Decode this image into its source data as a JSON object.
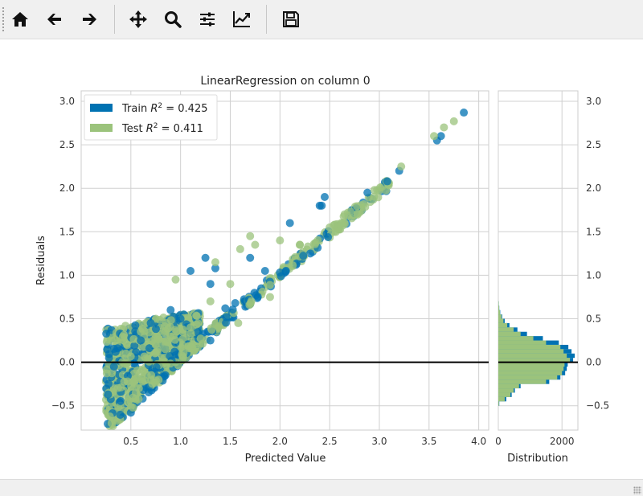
{
  "toolbar": {
    "buttons": [
      {
        "name": "home-button",
        "icon": "home-icon",
        "tooltip": "Reset original view"
      },
      {
        "name": "back-button",
        "icon": "arrow-left-icon",
        "tooltip": "Back to previous view"
      },
      {
        "name": "forward-button",
        "icon": "arrow-right-icon",
        "tooltip": "Forward to next view"
      },
      {
        "name": "pan-button",
        "icon": "move-icon",
        "tooltip": "Pan axes"
      },
      {
        "name": "zoom-button",
        "icon": "zoom-icon",
        "tooltip": "Zoom to rectangle"
      },
      {
        "name": "subplots-button",
        "icon": "sliders-icon",
        "tooltip": "Configure subplots"
      },
      {
        "name": "customize-button",
        "icon": "chart-line-icon",
        "tooltip": "Edit axis, curve and image parameters"
      },
      {
        "name": "save-button",
        "icon": "save-icon",
        "tooltip": "Save the figure"
      }
    ]
  },
  "chart_data": {
    "type": "scatter",
    "title": "LinearRegression on column 0",
    "xlabel": "Predicted Value",
    "ylabel": "Residuals",
    "xlim": [
      0.0,
      4.1
    ],
    "ylim": [
      -0.78,
      3.12
    ],
    "xticks": [
      "0.5",
      "1.0",
      "1.5",
      "2.0",
      "2.5",
      "3.0",
      "3.5",
      "4.0"
    ],
    "yticks": [
      "−0.5",
      "0.0",
      "0.5",
      "1.0",
      "1.5",
      "2.0",
      "2.5",
      "3.0"
    ],
    "grid": true,
    "legend_position": "upper-left",
    "legend": [
      {
        "label_prefix": "Train ",
        "label_suffix": " = 0.425",
        "color": "#0072B2"
      },
      {
        "label_prefix": "Test ",
        "label_suffix": " = 0.411",
        "color": "#9BC37C"
      }
    ],
    "colors": {
      "train": "#0072B2",
      "test": "#9BC37C",
      "zero_line": "#000000"
    },
    "series": [
      {
        "name": "Train",
        "points": [
          [
            0.27,
            -0.37
          ],
          [
            0.28,
            0.05
          ],
          [
            0.33,
            -0.05
          ],
          [
            0.5,
            -0.58
          ],
          [
            0.6,
            0.25
          ],
          [
            0.7,
            0.45
          ],
          [
            1.3,
            0.9
          ],
          [
            1.1,
            1.05
          ],
          [
            1.25,
            1.2
          ],
          [
            1.35,
            1.08
          ],
          [
            1.7,
            1.2
          ],
          [
            1.45,
            0.62
          ],
          [
            1.55,
            0.68
          ],
          [
            1.85,
            1.05
          ],
          [
            2.1,
            1.6
          ],
          [
            2.42,
            1.8
          ],
          [
            2.45,
            1.9
          ],
          [
            2.88,
            1.95
          ],
          [
            3.08,
            2.08
          ],
          [
            3.2,
            2.2
          ],
          [
            3.58,
            2.55
          ],
          [
            3.62,
            2.6
          ],
          [
            3.85,
            2.87
          ],
          [
            2.4,
            1.8
          ],
          [
            1.0,
            0.5
          ],
          [
            1.3,
            0.25
          ],
          [
            0.9,
            0.6
          ]
        ]
      },
      {
        "name": "Test",
        "points": [
          [
            0.45,
            0.1
          ],
          [
            0.6,
            0.35
          ],
          [
            0.75,
            0.2
          ],
          [
            1.1,
            0.4
          ],
          [
            1.3,
            0.7
          ],
          [
            1.6,
            1.3
          ],
          [
            1.7,
            1.45
          ],
          [
            1.75,
            1.35
          ],
          [
            2.0,
            1.4
          ],
          [
            2.2,
            1.35
          ],
          [
            2.5,
            1.55
          ],
          [
            2.65,
            1.7
          ],
          [
            3.22,
            2.25
          ],
          [
            3.55,
            2.6
          ],
          [
            3.65,
            2.7
          ],
          [
            3.75,
            2.77
          ],
          [
            2.95,
            1.98
          ],
          [
            1.5,
            0.9
          ],
          [
            0.95,
            0.95
          ],
          [
            1.35,
            1.15
          ],
          [
            0.52,
            -0.52
          ],
          [
            1.58,
            0.45
          ],
          [
            2.2,
            1.35
          ],
          [
            1.9,
            0.75
          ]
        ]
      }
    ],
    "histogram": {
      "xlabel": "Distribution",
      "xticks": [
        "0",
        "2000"
      ],
      "xlim": [
        0,
        2500
      ],
      "bins_y": [
        -0.5,
        -0.45,
        -0.4,
        -0.35,
        -0.3,
        -0.25,
        -0.2,
        -0.15,
        -0.1,
        -0.05,
        0.0,
        0.05,
        0.1,
        0.15,
        0.2,
        0.25,
        0.3,
        0.35,
        0.4,
        0.45,
        0.5,
        0.55,
        0.6,
        0.65
      ],
      "train_counts": [
        30,
        250,
        420,
        520,
        700,
        1600,
        1950,
        2100,
        2150,
        2180,
        2350,
        2400,
        2300,
        2200,
        1900,
        1400,
        900,
        600,
        350,
        200,
        120,
        60,
        30,
        15
      ],
      "test_counts": [
        20,
        200,
        380,
        480,
        650,
        1500,
        1850,
        2000,
        2050,
        2080,
        2250,
        2150,
        2050,
        1950,
        1500,
        1100,
        700,
        480,
        280,
        160,
        100,
        50,
        25,
        12
      ]
    }
  }
}
